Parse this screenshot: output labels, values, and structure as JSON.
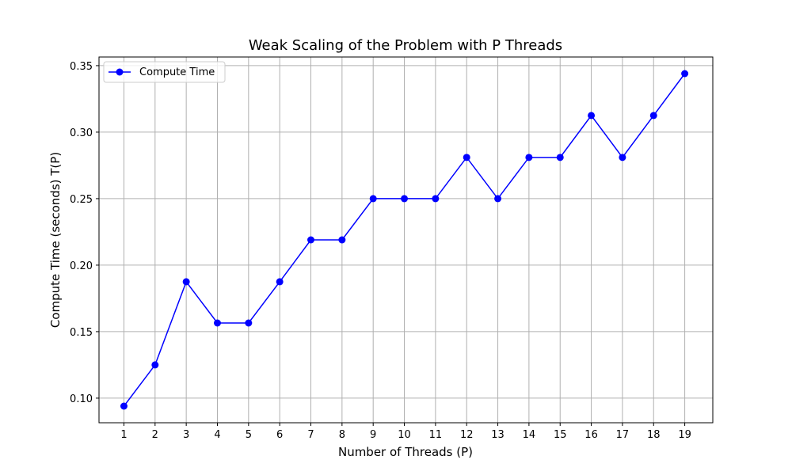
{
  "chart_data": {
    "type": "line",
    "title": "Weak Scaling of the Problem with P Threads",
    "xlabel": "Number of Threads (P)",
    "ylabel": "Compute Time (seconds) T(P)",
    "xlim": [
      0.2,
      19.9
    ],
    "ylim": [
      0.0815,
      0.3565
    ],
    "x_ticks": [
      1,
      2,
      3,
      4,
      5,
      6,
      7,
      8,
      9,
      10,
      11,
      12,
      13,
      14,
      15,
      16,
      17,
      18,
      19
    ],
    "y_ticks": [
      0.1,
      0.15,
      0.2,
      0.25,
      0.3,
      0.35
    ],
    "y_tick_labels": [
      "0.10",
      "0.15",
      "0.20",
      "0.25",
      "0.30",
      "0.35"
    ],
    "grid": true,
    "legend_position": "top-left",
    "series": [
      {
        "name": "Compute Time",
        "color": "#0000ff",
        "marker": "circle",
        "x": [
          1,
          2,
          3,
          4,
          5,
          6,
          7,
          8,
          9,
          10,
          11,
          12,
          13,
          14,
          15,
          16,
          17,
          18,
          19
        ],
        "y": [
          0.094,
          0.125,
          0.1875,
          0.1565,
          0.1565,
          0.1875,
          0.219,
          0.219,
          0.25,
          0.25,
          0.25,
          0.281,
          0.25,
          0.281,
          0.281,
          0.3125,
          0.281,
          0.3125,
          0.344
        ]
      }
    ]
  }
}
